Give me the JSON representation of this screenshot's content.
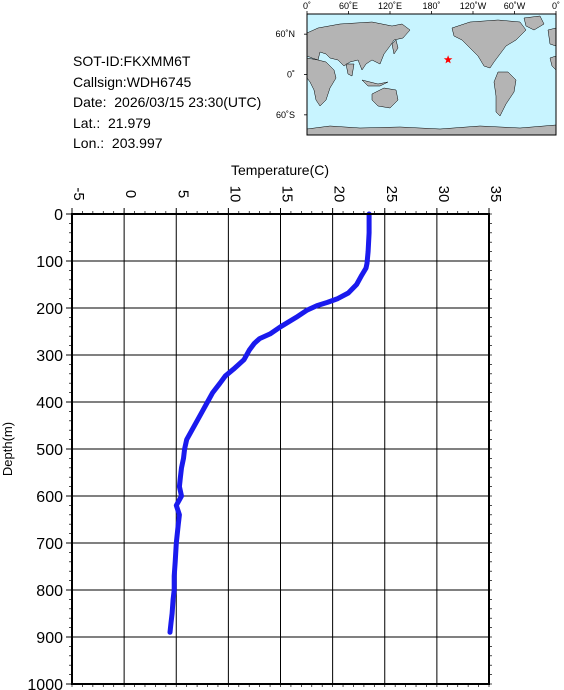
{
  "info": {
    "sot_id": "SOT-ID:FKXMM6T",
    "callsign": "Callsign:WDH6745",
    "date": "Date:  2026/03/15 23:30(UTC)",
    "lat": "Lat.:  21.979",
    "lon": "Lon.:  203.997"
  },
  "map": {
    "top_labels": [
      "0˚",
      "60˚E",
      "120˚E",
      "180˚",
      "120˚W",
      "60˚W",
      "0˚"
    ],
    "left_labels": [
      "60˚N",
      "0˚",
      "60˚S"
    ],
    "ocean_color": "#c8f4ff",
    "land_color": "#b4b4b4",
    "marker": {
      "lon": 203.997,
      "lat": 21.979,
      "symbol": "star",
      "color": "#ff0000"
    }
  },
  "chart_data": {
    "type": "line",
    "xlabel": "Temperature(C)",
    "ylabel": "Depth(m)",
    "xlim": [
      -5,
      35
    ],
    "ylim": [
      1000,
      0
    ],
    "x_ticks": [
      "-5",
      "0",
      "5",
      "10",
      "15",
      "20",
      "25",
      "30",
      "35"
    ],
    "y_ticks": [
      "0",
      "100",
      "200",
      "300",
      "400",
      "500",
      "600",
      "700",
      "800",
      "900",
      "1000"
    ],
    "grid": true,
    "line_color": "#1a1aee",
    "series": [
      {
        "x": [
          23.5,
          23.5,
          23.4,
          23.3,
          23.2,
          22.8,
          22.3,
          21.5,
          20.5,
          19.5,
          18.5,
          17.5,
          16.5,
          15.0,
          14.0,
          13.0,
          12.5,
          12.0,
          11.5,
          10.5,
          9.7,
          9.2,
          8.5,
          8.0,
          7.5,
          7.0,
          6.5,
          6.0,
          5.8,
          5.7,
          5.5,
          5.4,
          5.3,
          5.5,
          5.0,
          5.3,
          5.2,
          5.0,
          4.9,
          4.8,
          4.8,
          4.7,
          4.6,
          4.5,
          4.4
        ],
        "y": [
          0,
          40,
          80,
          105,
          115,
          130,
          150,
          168,
          180,
          188,
          195,
          205,
          220,
          240,
          255,
          265,
          275,
          290,
          310,
          330,
          345,
          360,
          380,
          400,
          420,
          440,
          460,
          480,
          500,
          520,
          540,
          560,
          580,
          600,
          620,
          640,
          660,
          700,
          740,
          770,
          800,
          820,
          850,
          870,
          890
        ]
      }
    ]
  }
}
